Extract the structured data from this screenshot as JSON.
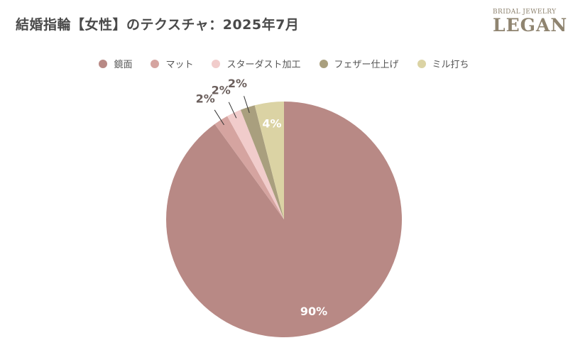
{
  "header": {
    "title": "結婚指輪【女性】のテクスチャ：2025年7月"
  },
  "brand": {
    "top": "BRIDAL JEWELRY",
    "main": "LEGAN"
  },
  "chart_data": {
    "type": "pie",
    "title": "結婚指輪【女性】のテクスチャ：2025年7月",
    "legend_position": "top",
    "slices": [
      {
        "name": "鏡面",
        "value": 90,
        "label": "90%",
        "color": "#b88985"
      },
      {
        "name": "マット",
        "value": 2,
        "label": "2%",
        "color": "#d5a4a0"
      },
      {
        "name": "スターダスト加工",
        "value": 2,
        "label": "2%",
        "color": "#f1cccb"
      },
      {
        "name": "フェザー仕上げ",
        "value": 2,
        "label": "2%",
        "color": "#a99f7e"
      },
      {
        "name": "ミル打ち",
        "value": 4,
        "label": "4%",
        "color": "#dbd3a4"
      }
    ]
  }
}
